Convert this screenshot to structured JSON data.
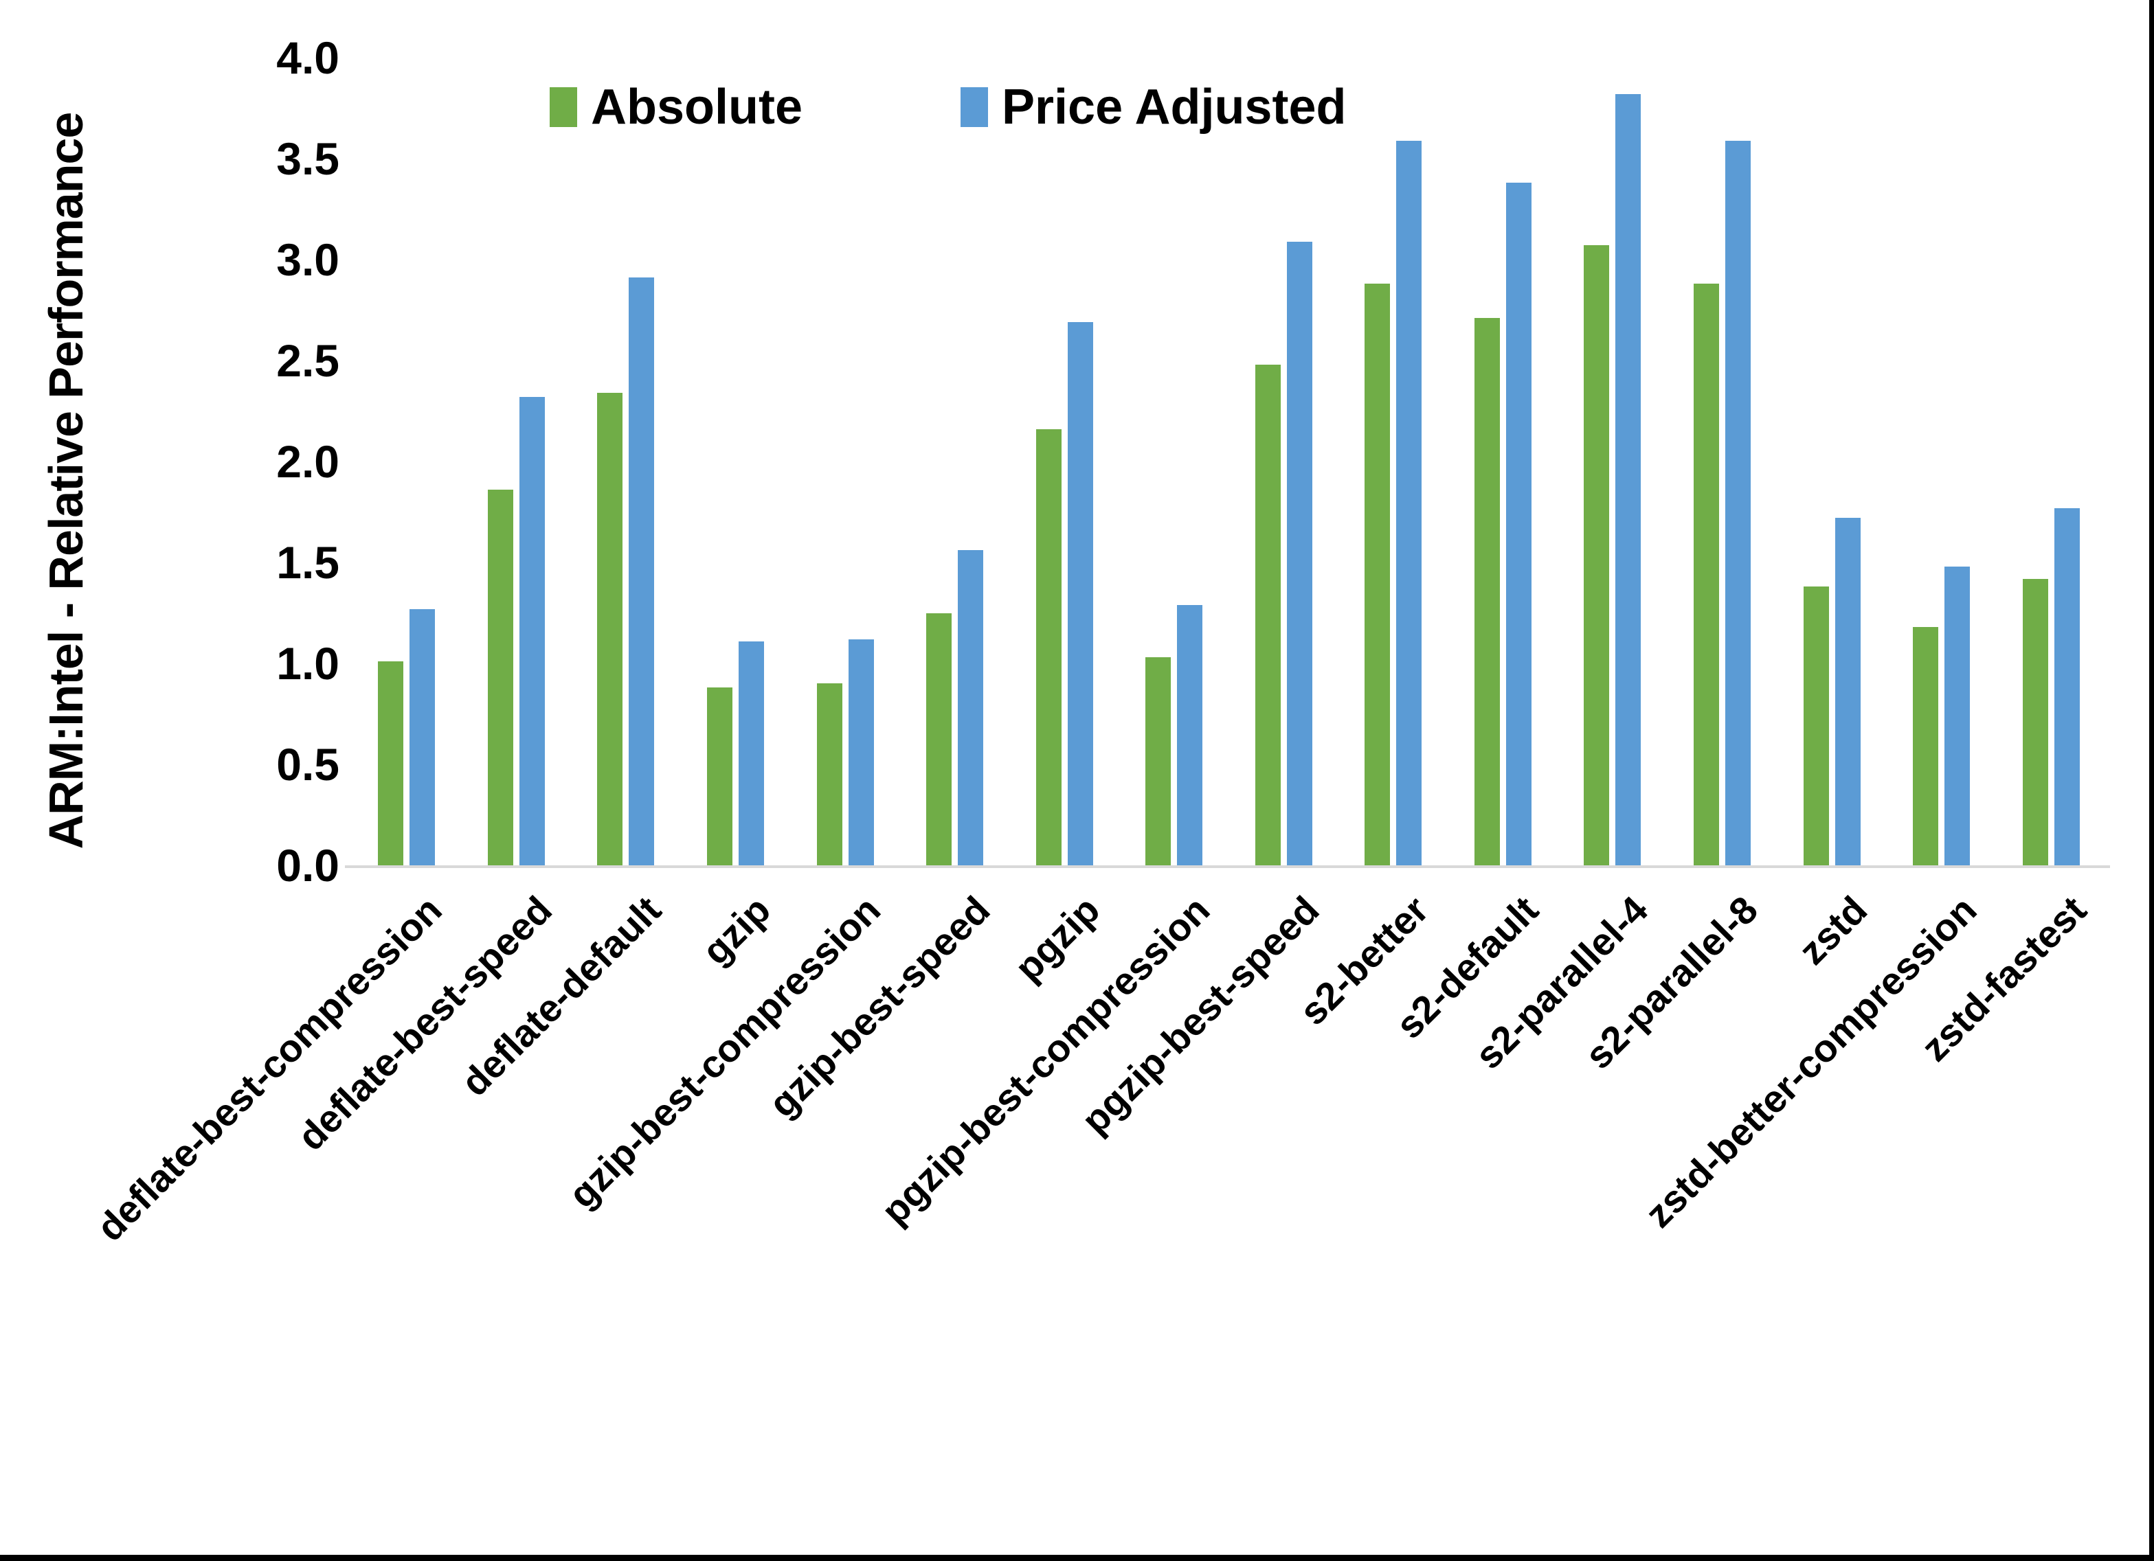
{
  "chart_data": {
    "type": "bar",
    "title": "",
    "xlabel": "",
    "ylabel": "ARM:Intel - Relative Performance",
    "ylim": [
      0.0,
      4.0
    ],
    "ytick_labels": [
      "0.0",
      "0.5",
      "1.0",
      "1.5",
      "2.0",
      "2.5",
      "3.0",
      "3.5",
      "4.0"
    ],
    "grid": false,
    "legend_position": "top-center",
    "background_color": "#ffffff",
    "axis_line_color": "#d9d9d9",
    "text_color": "#000000",
    "frame_edge_color": "#000000",
    "categories": [
      "deflate-best-compression",
      "deflate-best-speed",
      "deflate-default",
      "gzip",
      "gzip-best-compression",
      "gzip-best-speed",
      "pgzip",
      "pgzip-best-compression",
      "pgzip-best-speed",
      "s2-better",
      "s2-default",
      "s2-parallel-4",
      "s2-parallel-8",
      "zstd",
      "zstd-better-compression",
      "zstd-fastest"
    ],
    "series": [
      {
        "name": "Absolute",
        "color": "#70ad47",
        "values": [
          1.01,
          1.86,
          2.34,
          0.88,
          0.9,
          1.25,
          2.16,
          1.03,
          2.48,
          2.88,
          2.71,
          3.07,
          2.88,
          1.38,
          1.18,
          1.42
        ]
      },
      {
        "name": "Price Adjusted",
        "color": "#5b9bd5",
        "values": [
          1.27,
          2.32,
          2.91,
          1.11,
          1.12,
          1.56,
          2.69,
          1.29,
          3.09,
          3.59,
          3.38,
          3.82,
          3.59,
          1.72,
          1.48,
          1.77
        ]
      }
    ]
  }
}
